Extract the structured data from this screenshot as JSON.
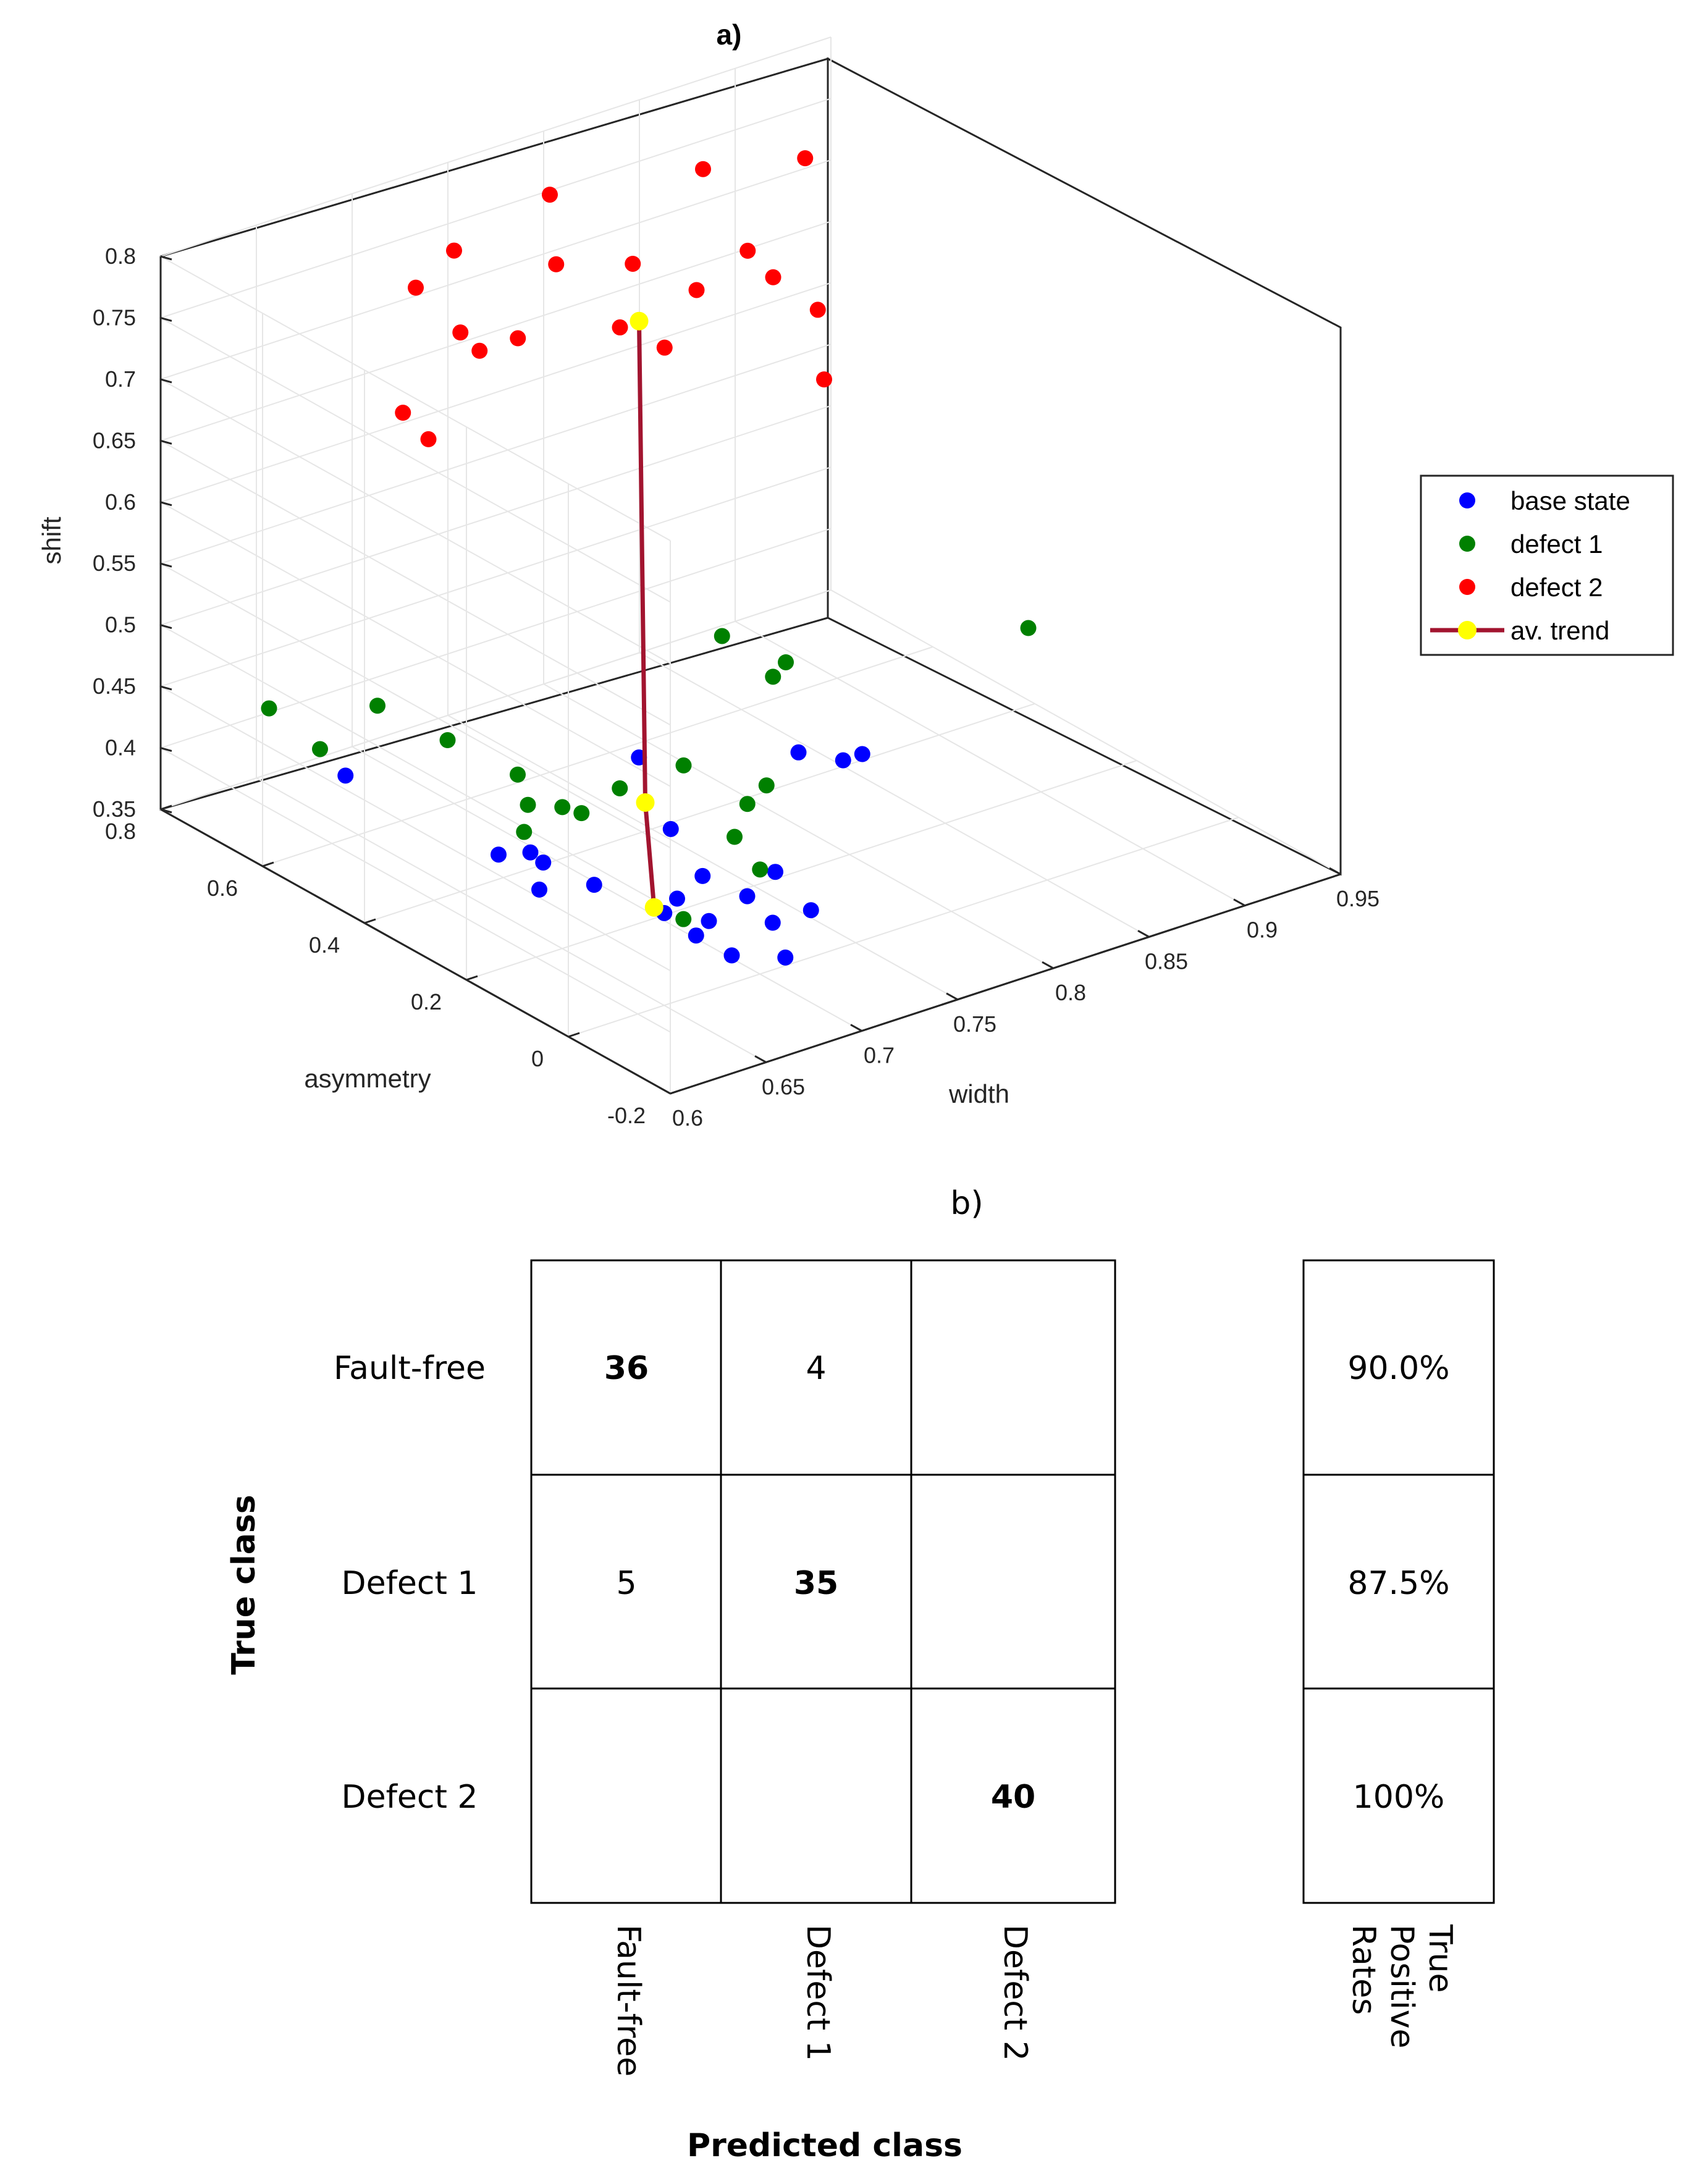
{
  "chart_data": [
    {
      "type": "scatter",
      "panel": "a)",
      "xlabel": "width",
      "ylabel": "asymmetry",
      "zlabel": "shift",
      "xlim": [
        0.6,
        0.95
      ],
      "ylim": [
        -0.2,
        0.8
      ],
      "zlim": [
        0.35,
        0.8
      ],
      "xticks": [
        "0.6",
        "0.65",
        "0.7",
        "0.75",
        "0.8",
        "0.85",
        "0.9",
        "0.95"
      ],
      "yticks": [
        "-0.2",
        "0",
        "0.2",
        "0.4",
        "0.6",
        "0.8"
      ],
      "zticks": [
        "0.35",
        "0.4",
        "0.45",
        "0.5",
        "0.55",
        "0.6",
        "0.65",
        "0.7",
        "0.75",
        "0.8"
      ],
      "grid": true,
      "legend_position": "right",
      "legend": [
        "base state",
        "defect 1",
        "defect 2",
        "av. trend"
      ],
      "series": [
        {
          "name": "base state",
          "color": "#0000ff",
          "points": [
            [
              0.63,
              0.55,
              0.42
            ],
            [
              0.66,
              0.3,
              0.4
            ],
            [
              0.67,
              0.4,
              0.37
            ],
            [
              0.68,
              0.35,
              0.37
            ],
            [
              0.67,
              0.32,
              0.36
            ],
            [
              0.68,
              0.25,
              0.375
            ],
            [
              0.69,
              0.15,
              0.37
            ],
            [
              0.7,
              0.1,
              0.37
            ],
            [
              0.71,
              0.15,
              0.39
            ],
            [
              0.72,
              0.25,
              0.4
            ],
            [
              0.73,
              0.35,
              0.43
            ],
            [
              0.7,
              -0.05,
              0.375
            ],
            [
              0.68,
              -0.02,
              0.38
            ],
            [
              0.68,
              0.05,
              0.38
            ],
            [
              0.72,
              0.05,
              0.37
            ],
            [
              0.72,
              0.1,
              0.38
            ],
            [
              0.74,
              0.05,
              0.37
            ],
            [
              0.74,
              0.12,
              0.385
            ],
            [
              0.71,
              0.2,
              0.36
            ],
            [
              0.8,
              0.3,
              0.41
            ],
            [
              0.81,
              0.25,
              0.41
            ],
            [
              0.82,
              0.25,
              0.41
            ]
          ]
        },
        {
          "name": "defect 1",
          "color": "#008000",
          "points": [
            [
              0.63,
              0.7,
              0.44
            ],
            [
              0.63,
              0.6,
              0.43
            ],
            [
              0.66,
              0.6,
              0.45
            ],
            [
              0.67,
              0.5,
              0.44
            ],
            [
              0.68,
              0.4,
              0.43
            ],
            [
              0.67,
              0.35,
              0.4
            ],
            [
              0.68,
              0.38,
              0.41
            ],
            [
              0.69,
              0.35,
              0.41
            ],
            [
              0.7,
              0.35,
              0.4
            ],
            [
              0.72,
              0.35,
              0.41
            ],
            [
              0.74,
              0.3,
              0.43
            ],
            [
              0.8,
              0.45,
              0.47
            ],
            [
              0.8,
              0.35,
              0.46
            ],
            [
              0.82,
              0.4,
              0.45
            ],
            [
              0.74,
              0.2,
              0.395
            ],
            [
              0.76,
              0.25,
              0.4
            ],
            [
              0.77,
              0.25,
              0.41
            ],
            [
              0.74,
              0.15,
              0.38
            ],
            [
              0.7,
              0.15,
              0.36
            ],
            [
              0.92,
              0.3,
              0.45
            ]
          ]
        },
        {
          "name": "defect 2",
          "color": "#ff0000",
          "points": [
            [
              0.66,
              0.55,
              0.7
            ],
            [
              0.66,
              0.5,
              0.69
            ],
            [
              0.68,
              0.6,
              0.78
            ],
            [
              0.69,
              0.55,
              0.75
            ],
            [
              0.7,
              0.55,
              0.73
            ],
            [
              0.7,
              0.6,
              0.8
            ],
            [
              0.72,
              0.55,
              0.73
            ],
            [
              0.74,
              0.55,
              0.78
            ],
            [
              0.75,
              0.6,
              0.82
            ],
            [
              0.76,
              0.5,
              0.73
            ],
            [
              0.77,
              0.5,
              0.73
            ],
            [
              0.77,
              0.45,
              0.72
            ],
            [
              0.78,
              0.55,
              0.76
            ],
            [
              0.8,
              0.5,
              0.74
            ],
            [
              0.83,
              0.6,
              0.8
            ],
            [
              0.84,
              0.55,
              0.74
            ],
            [
              0.84,
              0.5,
              0.73
            ],
            [
              0.85,
              0.45,
              0.71
            ],
            [
              0.84,
              0.4,
              0.67
            ],
            [
              0.87,
              0.55,
              0.8
            ]
          ]
        },
        {
          "name": "av. trend",
          "color": "#a2142f",
          "marker_color": "#ffff00",
          "points": [
            [
              0.69,
              0.17,
              0.37
            ],
            [
              0.72,
              0.3,
              0.41
            ],
            [
              0.77,
              0.5,
              0.73
            ]
          ]
        }
      ]
    },
    {
      "type": "table",
      "panel": "b)",
      "subtype": "confusion matrix",
      "ylabel": "True class",
      "xlabel": "Predicted class",
      "row_labels": [
        "Fault-free",
        "Defect 1",
        "Defect 2"
      ],
      "col_labels": [
        "Fault-free",
        "Defect 1",
        "Defect 2"
      ],
      "cells": [
        [
          "36",
          "4",
          ""
        ],
        [
          "5",
          "35",
          ""
        ],
        [
          "",
          "",
          "40"
        ]
      ],
      "bold_cells": [
        [
          0,
          0
        ],
        [
          1,
          1
        ],
        [
          2,
          2
        ]
      ],
      "rate_header": "True Positive Rates",
      "rates": [
        "90.0%",
        "87.5%",
        "100%"
      ]
    }
  ]
}
